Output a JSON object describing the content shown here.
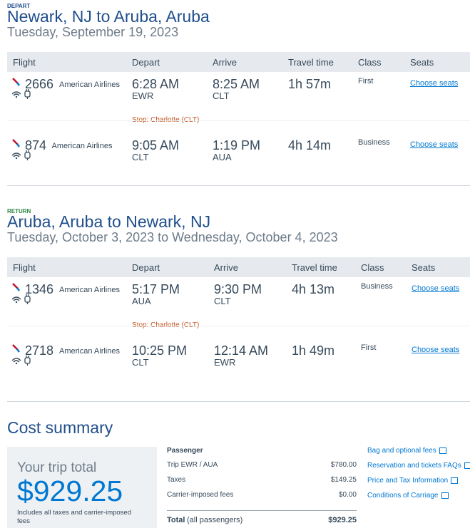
{
  "depart": {
    "label": "DEPART",
    "title": "Newark, NJ to Aruba, Aruba",
    "date": "Tuesday, September 19, 2023",
    "headers": [
      "Flight",
      "Depart",
      "Arrive",
      "Travel time",
      "Class",
      "Seats"
    ],
    "flights": [
      {
        "number": "2666",
        "airline": "American Airlines",
        "depart_time": "6:28 AM",
        "depart_code": "EWR",
        "arrive_time": "8:25 AM",
        "arrive_code": "CLT",
        "travel_time": "1h 57m",
        "class": "First",
        "seats": "Choose seats"
      },
      {
        "number": "874",
        "airline": "American Airlines",
        "depart_time": "9:05 AM",
        "depart_code": "CLT",
        "arrive_time": "1:19 PM",
        "arrive_code": "AUA",
        "travel_time": "4h 14m",
        "class": "Business",
        "seats": "Choose seats"
      }
    ],
    "stop": "Stop: Charlotte (CLT)"
  },
  "return": {
    "label": "RETURN",
    "title": "Aruba, Aruba to Newark, NJ",
    "date": "Tuesday, October 3, 2023 to Wednesday, October 4, 2023",
    "headers": [
      "Flight",
      "Depart",
      "Arrive",
      "Travel time",
      "Class",
      "Seats"
    ],
    "flights": [
      {
        "number": "1346",
        "airline": "American Airlines",
        "depart_time": "5:17 PM",
        "depart_code": "AUA",
        "arrive_time": "9:30 PM",
        "arrive_code": "CLT",
        "travel_time": "4h 13m",
        "class": "Business",
        "seats": "Choose seats"
      },
      {
        "number": "2718",
        "airline": "American Airlines",
        "depart_time": "10:25 PM",
        "depart_code": "CLT",
        "arrive_time": "12:14 AM",
        "arrive_code": "EWR",
        "travel_time": "1h 49m",
        "class": "First",
        "seats": "Choose seats"
      }
    ],
    "stop": "Stop: Charlotte (CLT)"
  },
  "cost": {
    "title": "Cost summary",
    "total_label": "Your trip total",
    "total": "$929.25",
    "note": "Includes all taxes and carrier-imposed fees",
    "passenger": "Passenger",
    "rows": [
      [
        "Trip EWR / AUA",
        "$780.00"
      ],
      [
        "Taxes",
        "$149.25"
      ],
      [
        "Carrier-imposed fees",
        "$0.00"
      ]
    ],
    "total_row": {
      "label": "Total",
      "qualifier": "(all passengers)",
      "amount": "$929.25"
    },
    "links": [
      "Bag and optional fees",
      "Reservation and tickets FAQs",
      "Price and Tax Information",
      "Conditions of Carriage"
    ]
  }
}
